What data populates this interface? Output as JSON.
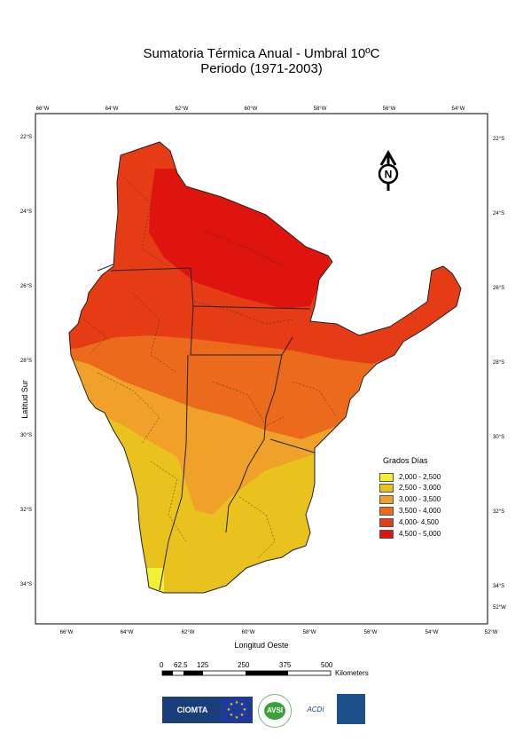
{
  "title_line1": "Sumatoria Térmica Anual - Umbral 10ºC",
  "title_line2": "Periodo (1971-2003)",
  "ticks": {
    "top": [
      "66°W",
      "64°W",
      "62°W",
      "60°W",
      "58°W",
      "56°W",
      "54°W"
    ],
    "bottom": [
      "66°W",
      "64°W",
      "62°W",
      "60°W",
      "58°W",
      "56°W",
      "54°W",
      "52°W"
    ],
    "left": [
      "22°S",
      "24°S",
      "26°S",
      "28°S",
      "30°S",
      "32°S",
      "34°S"
    ],
    "right": [
      "22°S",
      "24°S",
      "26°S",
      "28°S",
      "30°S",
      "32°S",
      "34°S",
      "52°W"
    ]
  },
  "axis": {
    "x_label": "Longitud Oeste",
    "y_label": "Latitud Sur"
  },
  "legend": {
    "title": "Grados Días",
    "items": [
      {
        "label": "2,000 - 2,500",
        "color": "#f2f034"
      },
      {
        "label": "2,500 - 3,000",
        "color": "#e9c21d"
      },
      {
        "label": "3,000 - 3,500",
        "color": "#efa12a"
      },
      {
        "label": "3,500 - 4,000",
        "color": "#eb6a1c"
      },
      {
        "label": "4,000- 4,500",
        "color": "#e53c15"
      },
      {
        "label": "4,500 - 5,000",
        "color": "#e0140e"
      }
    ]
  },
  "scale": {
    "labels": [
      "0",
      "62.5",
      "125",
      "250",
      "375",
      "500"
    ],
    "unit": "Kilometers"
  },
  "north": "N",
  "logos": {
    "ciomta": "CIOMTA",
    "avsi": "AVSI",
    "acdi": "ACDI"
  }
}
